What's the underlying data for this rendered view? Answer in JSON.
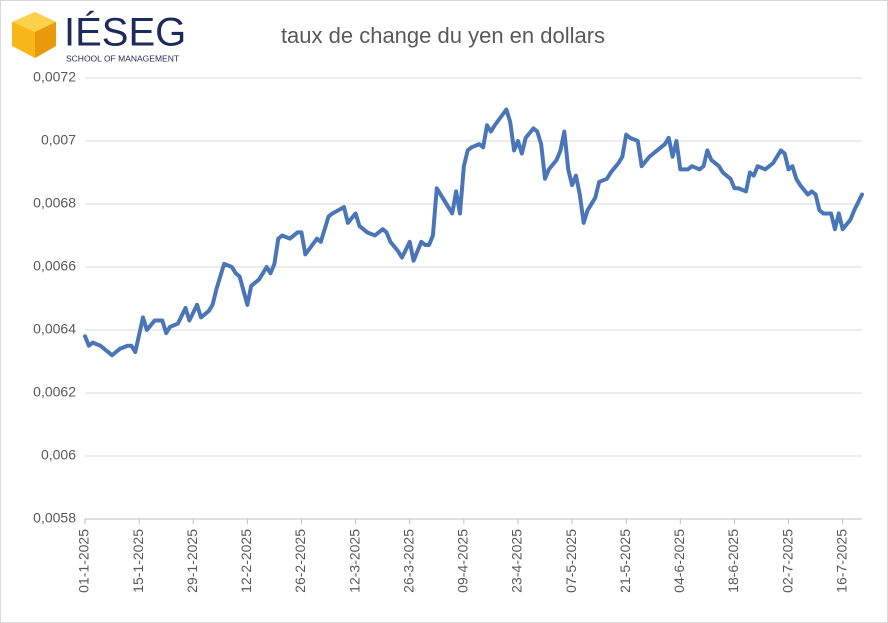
{
  "logo": {
    "name": "IÉSEG",
    "tagline": "SCHOOL OF MANAGEMENT"
  },
  "chart_data": {
    "type": "line",
    "title": "taux de change du yen en dollars",
    "color": "#4a76b8",
    "grid": true,
    "x": [
      "2025-01-01",
      "2025-01-02",
      "2025-01-03",
      "2025-01-05",
      "2025-01-06",
      "2025-01-08",
      "2025-01-10",
      "2025-01-12",
      "2025-01-13",
      "2025-01-14",
      "2025-01-16",
      "2025-01-17",
      "2025-01-19",
      "2025-01-21",
      "2025-01-22",
      "2025-01-23",
      "2025-01-25",
      "2025-01-27",
      "2025-01-28",
      "2025-01-30",
      "2025-01-31",
      "2025-02-02",
      "2025-02-03",
      "2025-02-04",
      "2025-02-06",
      "2025-02-08",
      "2025-02-09",
      "2025-02-10",
      "2025-02-12",
      "2025-02-13",
      "2025-02-15",
      "2025-02-16",
      "2025-02-17",
      "2025-02-18",
      "2025-02-19",
      "2025-02-20",
      "2025-02-21",
      "2025-02-23",
      "2025-02-25",
      "2025-02-26",
      "2025-02-27",
      "2025-03-02",
      "2025-03-03",
      "2025-03-05",
      "2025-03-06",
      "2025-03-09",
      "2025-03-10",
      "2025-03-12",
      "2025-03-13",
      "2025-03-15",
      "2025-03-17",
      "2025-03-19",
      "2025-03-20",
      "2025-03-21",
      "2025-03-23",
      "2025-03-24",
      "2025-03-26",
      "2025-03-27",
      "2025-03-29",
      "2025-03-30",
      "2025-03-31",
      "2025-04-01",
      "2025-04-02",
      "2025-04-04",
      "2025-04-05",
      "2025-04-06",
      "2025-04-07",
      "2025-04-08",
      "2025-04-09",
      "2025-04-10",
      "2025-04-11",
      "2025-04-13",
      "2025-04-14",
      "2025-04-15",
      "2025-04-16",
      "2025-04-17",
      "2025-04-20",
      "2025-04-21",
      "2025-04-22",
      "2025-04-23",
      "2025-04-24",
      "2025-04-25",
      "2025-04-27",
      "2025-04-28",
      "2025-04-29",
      "2025-04-30",
      "2025-05-01",
      "2025-05-03",
      "2025-05-04",
      "2025-05-05",
      "2025-05-06",
      "2025-05-07",
      "2025-05-08",
      "2025-05-09",
      "2025-05-10",
      "2025-05-11",
      "2025-05-13",
      "2025-05-14",
      "2025-05-16",
      "2025-05-17",
      "2025-05-19",
      "2025-05-20",
      "2025-05-21",
      "2025-05-22",
      "2025-05-24",
      "2025-05-25",
      "2025-05-27",
      "2025-05-28",
      "2025-05-31",
      "2025-06-01",
      "2025-06-02",
      "2025-06-03",
      "2025-06-04",
      "2025-06-06",
      "2025-06-07",
      "2025-06-09",
      "2025-06-10",
      "2025-06-11",
      "2025-06-12",
      "2025-06-14",
      "2025-06-15",
      "2025-06-16",
      "2025-06-17",
      "2025-06-18",
      "2025-06-19",
      "2025-06-21",
      "2025-06-22",
      "2025-06-23",
      "2025-06-24",
      "2025-06-26",
      "2025-06-28",
      "2025-06-29",
      "2025-06-30",
      "2025-07-01",
      "2025-07-02",
      "2025-07-03",
      "2025-07-04",
      "2025-07-05",
      "2025-07-07",
      "2025-07-08",
      "2025-07-09",
      "2025-07-10",
      "2025-07-11",
      "2025-07-13",
      "2025-07-14",
      "2025-07-15",
      "2025-07-16",
      "2025-07-18",
      "2025-07-19",
      "2025-07-21"
    ],
    "values": [
      0.00638,
      0.00635,
      0.00636,
      0.00635,
      0.00634,
      0.00632,
      0.00634,
      0.00635,
      0.00635,
      0.00633,
      0.00644,
      0.0064,
      0.00643,
      0.00643,
      0.00639,
      0.00641,
      0.00642,
      0.00647,
      0.00643,
      0.00648,
      0.00644,
      0.00646,
      0.00648,
      0.00653,
      0.00661,
      0.0066,
      0.00658,
      0.00657,
      0.00648,
      0.00654,
      0.00656,
      0.00658,
      0.0066,
      0.00658,
      0.00661,
      0.00669,
      0.0067,
      0.00669,
      0.00671,
      0.00671,
      0.00664,
      0.00669,
      0.00668,
      0.00676,
      0.00677,
      0.00679,
      0.00674,
      0.00677,
      0.00673,
      0.00671,
      0.0067,
      0.00672,
      0.00671,
      0.00668,
      0.00665,
      0.00663,
      0.00668,
      0.00662,
      0.00668,
      0.00667,
      0.00667,
      0.0067,
      0.00685,
      0.00681,
      0.00679,
      0.00677,
      0.00684,
      0.00677,
      0.00692,
      0.00697,
      0.00698,
      0.00699,
      0.00698,
      0.00705,
      0.00703,
      0.00705,
      0.0071,
      0.00706,
      0.00697,
      0.007,
      0.00696,
      0.00701,
      0.00704,
      0.00703,
      0.00699,
      0.00688,
      0.00691,
      0.00694,
      0.00697,
      0.00703,
      0.00691,
      0.00686,
      0.00689,
      0.00683,
      0.00674,
      0.00678,
      0.00682,
      0.00687,
      0.00688,
      0.0069,
      0.00693,
      0.00695,
      0.00702,
      0.00701,
      0.007,
      0.00692,
      0.00695,
      0.00696,
      0.00699,
      0.00701,
      0.00695,
      0.007,
      0.00691,
      0.00691,
      0.00692,
      0.00691,
      0.00692,
      0.00697,
      0.00694,
      0.00692,
      0.0069,
      0.00689,
      0.00688,
      0.00685,
      0.00685,
      0.00684,
      0.0069,
      0.00689,
      0.00692,
      0.00691,
      0.00693,
      0.00695,
      0.00697,
      0.00696,
      0.00691,
      0.00692,
      0.00688,
      0.00686,
      0.00683,
      0.00684,
      0.00683,
      0.00678,
      0.00677,
      0.00677,
      0.00672,
      0.00677,
      0.00672,
      0.00675,
      0.00678,
      0.00683
    ],
    "xlim": [
      "2025-01-01",
      "2025-07-21"
    ],
    "xticks": [
      {
        "value": "2025-01-01",
        "label": "01-1-2025"
      },
      {
        "value": "2025-01-15",
        "label": "15-1-2025"
      },
      {
        "value": "2025-01-29",
        "label": "29-1-2025"
      },
      {
        "value": "2025-02-12",
        "label": "12-2-2025"
      },
      {
        "value": "2025-02-26",
        "label": "26-2-2025"
      },
      {
        "value": "2025-03-12",
        "label": "12-3-2025"
      },
      {
        "value": "2025-03-26",
        "label": "26-3-2025"
      },
      {
        "value": "2025-04-09",
        "label": "09-4-2025"
      },
      {
        "value": "2025-04-23",
        "label": "23-4-2025"
      },
      {
        "value": "2025-05-07",
        "label": "07-5-2025"
      },
      {
        "value": "2025-05-21",
        "label": "21-5-2025"
      },
      {
        "value": "2025-06-04",
        "label": "04-6-2025"
      },
      {
        "value": "2025-06-18",
        "label": "18-6-2025"
      },
      {
        "value": "2025-07-02",
        "label": "02-7-2025"
      },
      {
        "value": "2025-07-16",
        "label": "16-7-2025"
      }
    ],
    "ylim": [
      0.0058,
      0.0072
    ],
    "yticks": [
      {
        "value": 0.0058,
        "label": "0,0058"
      },
      {
        "value": 0.006,
        "label": "0,006"
      },
      {
        "value": 0.0062,
        "label": "0,0062"
      },
      {
        "value": 0.0064,
        "label": "0,0064"
      },
      {
        "value": 0.0066,
        "label": "0,0066"
      },
      {
        "value": 0.0068,
        "label": "0,0068"
      },
      {
        "value": 0.007,
        "label": "0,007"
      },
      {
        "value": 0.0072,
        "label": "0,0072"
      }
    ]
  }
}
